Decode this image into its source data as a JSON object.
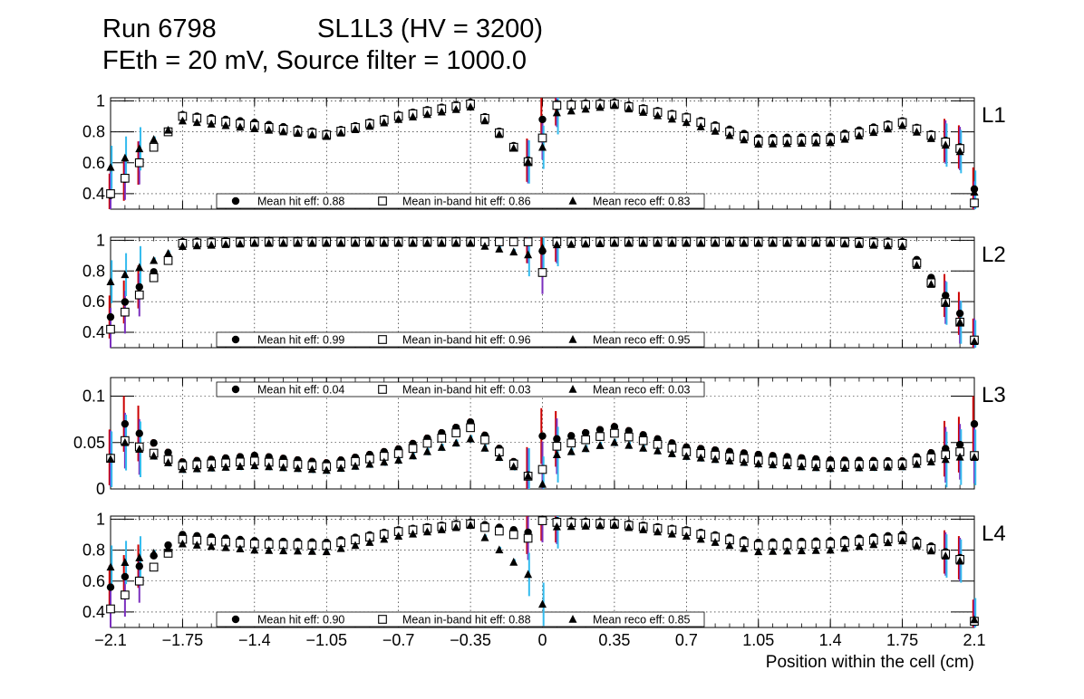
{
  "header": {
    "run": "Run 6798",
    "chamber": "SL1L3 (HV = 3200)",
    "settings": "FEth = 20 mV, Source filter = 1000.0"
  },
  "colors": {
    "hit_err": "#cc0000",
    "inband_err": "#7b2fbe",
    "reco_err": "#33bbee",
    "marker": "#000000"
  },
  "chart_data": [
    {
      "type": "scatter",
      "panel": "L1",
      "title": "L1",
      "xlabel": "Position within the cell (cm)",
      "ylabel": "",
      "xlim": [
        -2.1,
        2.1
      ],
      "ylim": [
        0.3,
        1.02
      ],
      "yticks": [
        "0.4",
        "0.6",
        "0.8",
        "1"
      ],
      "grid": true,
      "legend_position": "bottom",
      "legend": [
        "Mean hit  eff: 0.88",
        "Mean in-band hit eff: 0.86",
        "Mean reco eff: 0.83"
      ],
      "series": [
        {
          "name": "hit eff",
          "marker": "circle",
          "x": [
            -2.1,
            -1.75,
            -1.4,
            -1.05,
            -0.7,
            -0.35,
            -0.05,
            0,
            0.05,
            0.35,
            0.7,
            1.05,
            1.4,
            1.75,
            2.05,
            2.1
          ],
          "values": [
            0.39,
            0.91,
            0.86,
            0.79,
            0.91,
            0.99,
            0.59,
            0.88,
            0.98,
            0.99,
            0.9,
            0.76,
            0.77,
            0.87,
            0.69,
            0.43
          ]
        },
        {
          "name": "in-band hit eff",
          "marker": "square-open",
          "x": [
            -2.1,
            -1.75,
            -1.4,
            -1.05,
            -0.7,
            -0.35,
            -0.05,
            0,
            0.05,
            0.35,
            0.7,
            1.05,
            1.4,
            1.75,
            2.05,
            2.1
          ],
          "values": [
            0.4,
            0.9,
            0.84,
            0.78,
            0.9,
            0.98,
            0.58,
            0.76,
            0.97,
            0.98,
            0.89,
            0.74,
            0.75,
            0.86,
            0.68,
            0.34
          ]
        },
        {
          "name": "reco eff",
          "marker": "triangle",
          "x": [
            -2.1,
            -1.75,
            -1.4,
            -1.05,
            -0.7,
            -0.35,
            -0.05,
            0,
            0.05,
            0.35,
            0.7,
            1.05,
            1.4,
            1.75,
            2.05,
            2.1
          ],
          "values": [
            0.57,
            0.87,
            0.82,
            0.77,
            0.88,
            0.96,
            0.58,
            0.7,
            0.92,
            0.97,
            0.86,
            0.72,
            0.73,
            0.84,
            0.66,
            0.41
          ]
        }
      ]
    },
    {
      "type": "scatter",
      "panel": "L2",
      "title": "L2",
      "xlabel": "Position within the cell (cm)",
      "ylabel": "",
      "xlim": [
        -2.1,
        2.1
      ],
      "ylim": [
        0.3,
        1.02
      ],
      "yticks": [
        "0.4",
        "0.6",
        "0.8",
        "1"
      ],
      "grid": true,
      "legend_position": "bottom",
      "legend": [
        "Mean hit  eff: 0.99",
        "Mean in-band hit eff: 0.96",
        "Mean reco eff: 0.95"
      ],
      "series": [
        {
          "name": "hit eff",
          "marker": "circle",
          "x": [
            -2.1,
            -1.75,
            -1.4,
            -1.05,
            -0.7,
            -0.35,
            -0.05,
            0,
            0.05,
            0.35,
            0.7,
            1.05,
            1.4,
            1.75,
            2.05,
            2.1
          ],
          "values": [
            0.5,
            0.99,
            1.0,
            1.0,
            1.0,
            1.0,
            0.99,
            0.93,
            1.0,
            1.0,
            1.0,
            1.0,
            1.0,
            0.99,
            0.49,
            0.35
          ]
        },
        {
          "name": "in-band hit eff",
          "marker": "square-open",
          "x": [
            -2.1,
            -1.75,
            -1.4,
            -1.05,
            -0.7,
            -0.35,
            -0.05,
            0,
            0.05,
            0.35,
            0.7,
            1.05,
            1.4,
            1.75,
            2.05,
            2.1
          ],
          "values": [
            0.42,
            0.98,
            0.99,
            0.99,
            0.99,
            0.99,
            0.99,
            0.79,
            0.99,
            0.99,
            0.99,
            0.99,
            0.99,
            0.98,
            0.43,
            0.35
          ]
        },
        {
          "name": "reco eff",
          "marker": "triangle",
          "x": [
            -2.1,
            -1.75,
            -1.4,
            -1.05,
            -0.7,
            -0.35,
            -0.05,
            0,
            0.05,
            0.35,
            0.7,
            1.05,
            1.4,
            1.75,
            2.05,
            2.1
          ],
          "values": [
            0.73,
            0.96,
            0.98,
            0.98,
            0.98,
            0.98,
            0.9,
            0.95,
            0.97,
            0.98,
            0.98,
            0.98,
            0.98,
            0.96,
            0.43,
            0.34
          ]
        }
      ]
    },
    {
      "type": "scatter",
      "panel": "L3",
      "title": "L3",
      "xlabel": "Position within the cell (cm)",
      "ylabel": "",
      "xlim": [
        -2.1,
        2.1
      ],
      "ylim": [
        0,
        0.12
      ],
      "yticks": [
        "0",
        "0.05",
        "0.1"
      ],
      "grid": true,
      "legend_position": "top",
      "legend": [
        "Mean hit  eff: 0.04",
        "Mean in-band hit eff: 0.03",
        "Mean reco eff: 0.03"
      ],
      "series": [
        {
          "name": "hit eff",
          "marker": "circle",
          "x": [
            -2.1,
            -2.05,
            -1.75,
            -1.4,
            -1.05,
            -0.7,
            -0.35,
            -0.05,
            0,
            0.05,
            0.35,
            0.7,
            1.05,
            1.4,
            1.75,
            2.05,
            2.1
          ],
          "values": [
            0.034,
            0.073,
            0.029,
            0.036,
            0.028,
            0.043,
            0.072,
            0.011,
            0.057,
            0.053,
            0.067,
            0.045,
            0.037,
            0.031,
            0.03,
            0.049,
            0.07
          ]
        },
        {
          "name": "in-band hit eff",
          "marker": "square-open",
          "x": [
            -2.1,
            -2.05,
            -1.75,
            -1.4,
            -1.05,
            -0.7,
            -0.35,
            -0.05,
            0,
            0.05,
            0.35,
            0.7,
            1.05,
            1.4,
            1.75,
            2.05,
            2.1
          ],
          "values": [
            0.033,
            0.054,
            0.025,
            0.03,
            0.024,
            0.038,
            0.066,
            0.01,
            0.021,
            0.045,
            0.06,
            0.04,
            0.031,
            0.026,
            0.027,
            0.041,
            0.036
          ]
        },
        {
          "name": "reco eff",
          "marker": "triangle",
          "x": [
            -2.1,
            -2.05,
            -1.75,
            -1.4,
            -1.05,
            -0.7,
            -0.35,
            -0.05,
            0,
            0.05,
            0.35,
            0.7,
            1.05,
            1.4,
            1.75,
            2.05,
            2.1
          ],
          "values": [
            0.032,
            0.052,
            0.021,
            0.025,
            0.02,
            0.031,
            0.054,
            0.011,
            0.005,
            0.036,
            0.05,
            0.035,
            0.027,
            0.022,
            0.024,
            0.035,
            0.034
          ]
        }
      ]
    },
    {
      "type": "scatter",
      "panel": "L4",
      "title": "L4",
      "xlabel": "Position within the cell (cm)",
      "ylabel": "",
      "xlim": [
        -2.1,
        2.1
      ],
      "ylim": [
        0.3,
        1.02
      ],
      "yticks": [
        "0.4",
        "0.6",
        "0.8",
        "1"
      ],
      "xticks": [
        "−2.1",
        "−1.75",
        "−1.4",
        "−1.05",
        "−0.7",
        "−0.35",
        "0",
        "0.35",
        "0.7",
        "1.05",
        "1.4",
        "1.75",
        "2.1"
      ],
      "grid": true,
      "legend_position": "bottom",
      "legend": [
        "Mean hit  eff: 0.90",
        "Mean in-band hit eff: 0.88",
        "Mean reco eff: 0.85"
      ],
      "series": [
        {
          "name": "hit eff",
          "marker": "circle",
          "x": [
            -2.1,
            -1.75,
            -1.4,
            -1.05,
            -0.7,
            -0.35,
            -0.05,
            0,
            0.05,
            0.35,
            0.7,
            1.05,
            1.4,
            1.75,
            2.05,
            2.1
          ],
          "values": [
            0.56,
            0.9,
            0.86,
            0.85,
            0.93,
            0.98,
            0.91,
            1.0,
            0.99,
            0.98,
            0.93,
            0.85,
            0.86,
            0.9,
            0.74,
            0.34
          ]
        },
        {
          "name": "in-band hit eff",
          "marker": "square-open",
          "x": [
            -2.1,
            -1.75,
            -1.4,
            -1.05,
            -0.7,
            -0.35,
            -0.05,
            0,
            0.05,
            0.35,
            0.7,
            1.05,
            1.4,
            1.75,
            2.05,
            2.1
          ],
          "values": [
            0.42,
            0.87,
            0.84,
            0.83,
            0.92,
            0.97,
            0.87,
            0.99,
            0.98,
            0.97,
            0.92,
            0.83,
            0.84,
            0.88,
            0.73,
            0.34
          ]
        },
        {
          "name": "reco eff",
          "marker": "triangle",
          "x": [
            -2.1,
            -1.75,
            -1.4,
            -1.05,
            -0.7,
            -0.35,
            -0.05,
            0,
            0.05,
            0.35,
            0.7,
            1.05,
            1.4,
            1.75,
            2.05,
            2.1
          ],
          "values": [
            0.69,
            0.84,
            0.8,
            0.79,
            0.89,
            0.96,
            0.62,
            0.45,
            0.95,
            0.96,
            0.89,
            0.79,
            0.8,
            0.86,
            0.72,
            0.35
          ]
        }
      ]
    }
  ]
}
